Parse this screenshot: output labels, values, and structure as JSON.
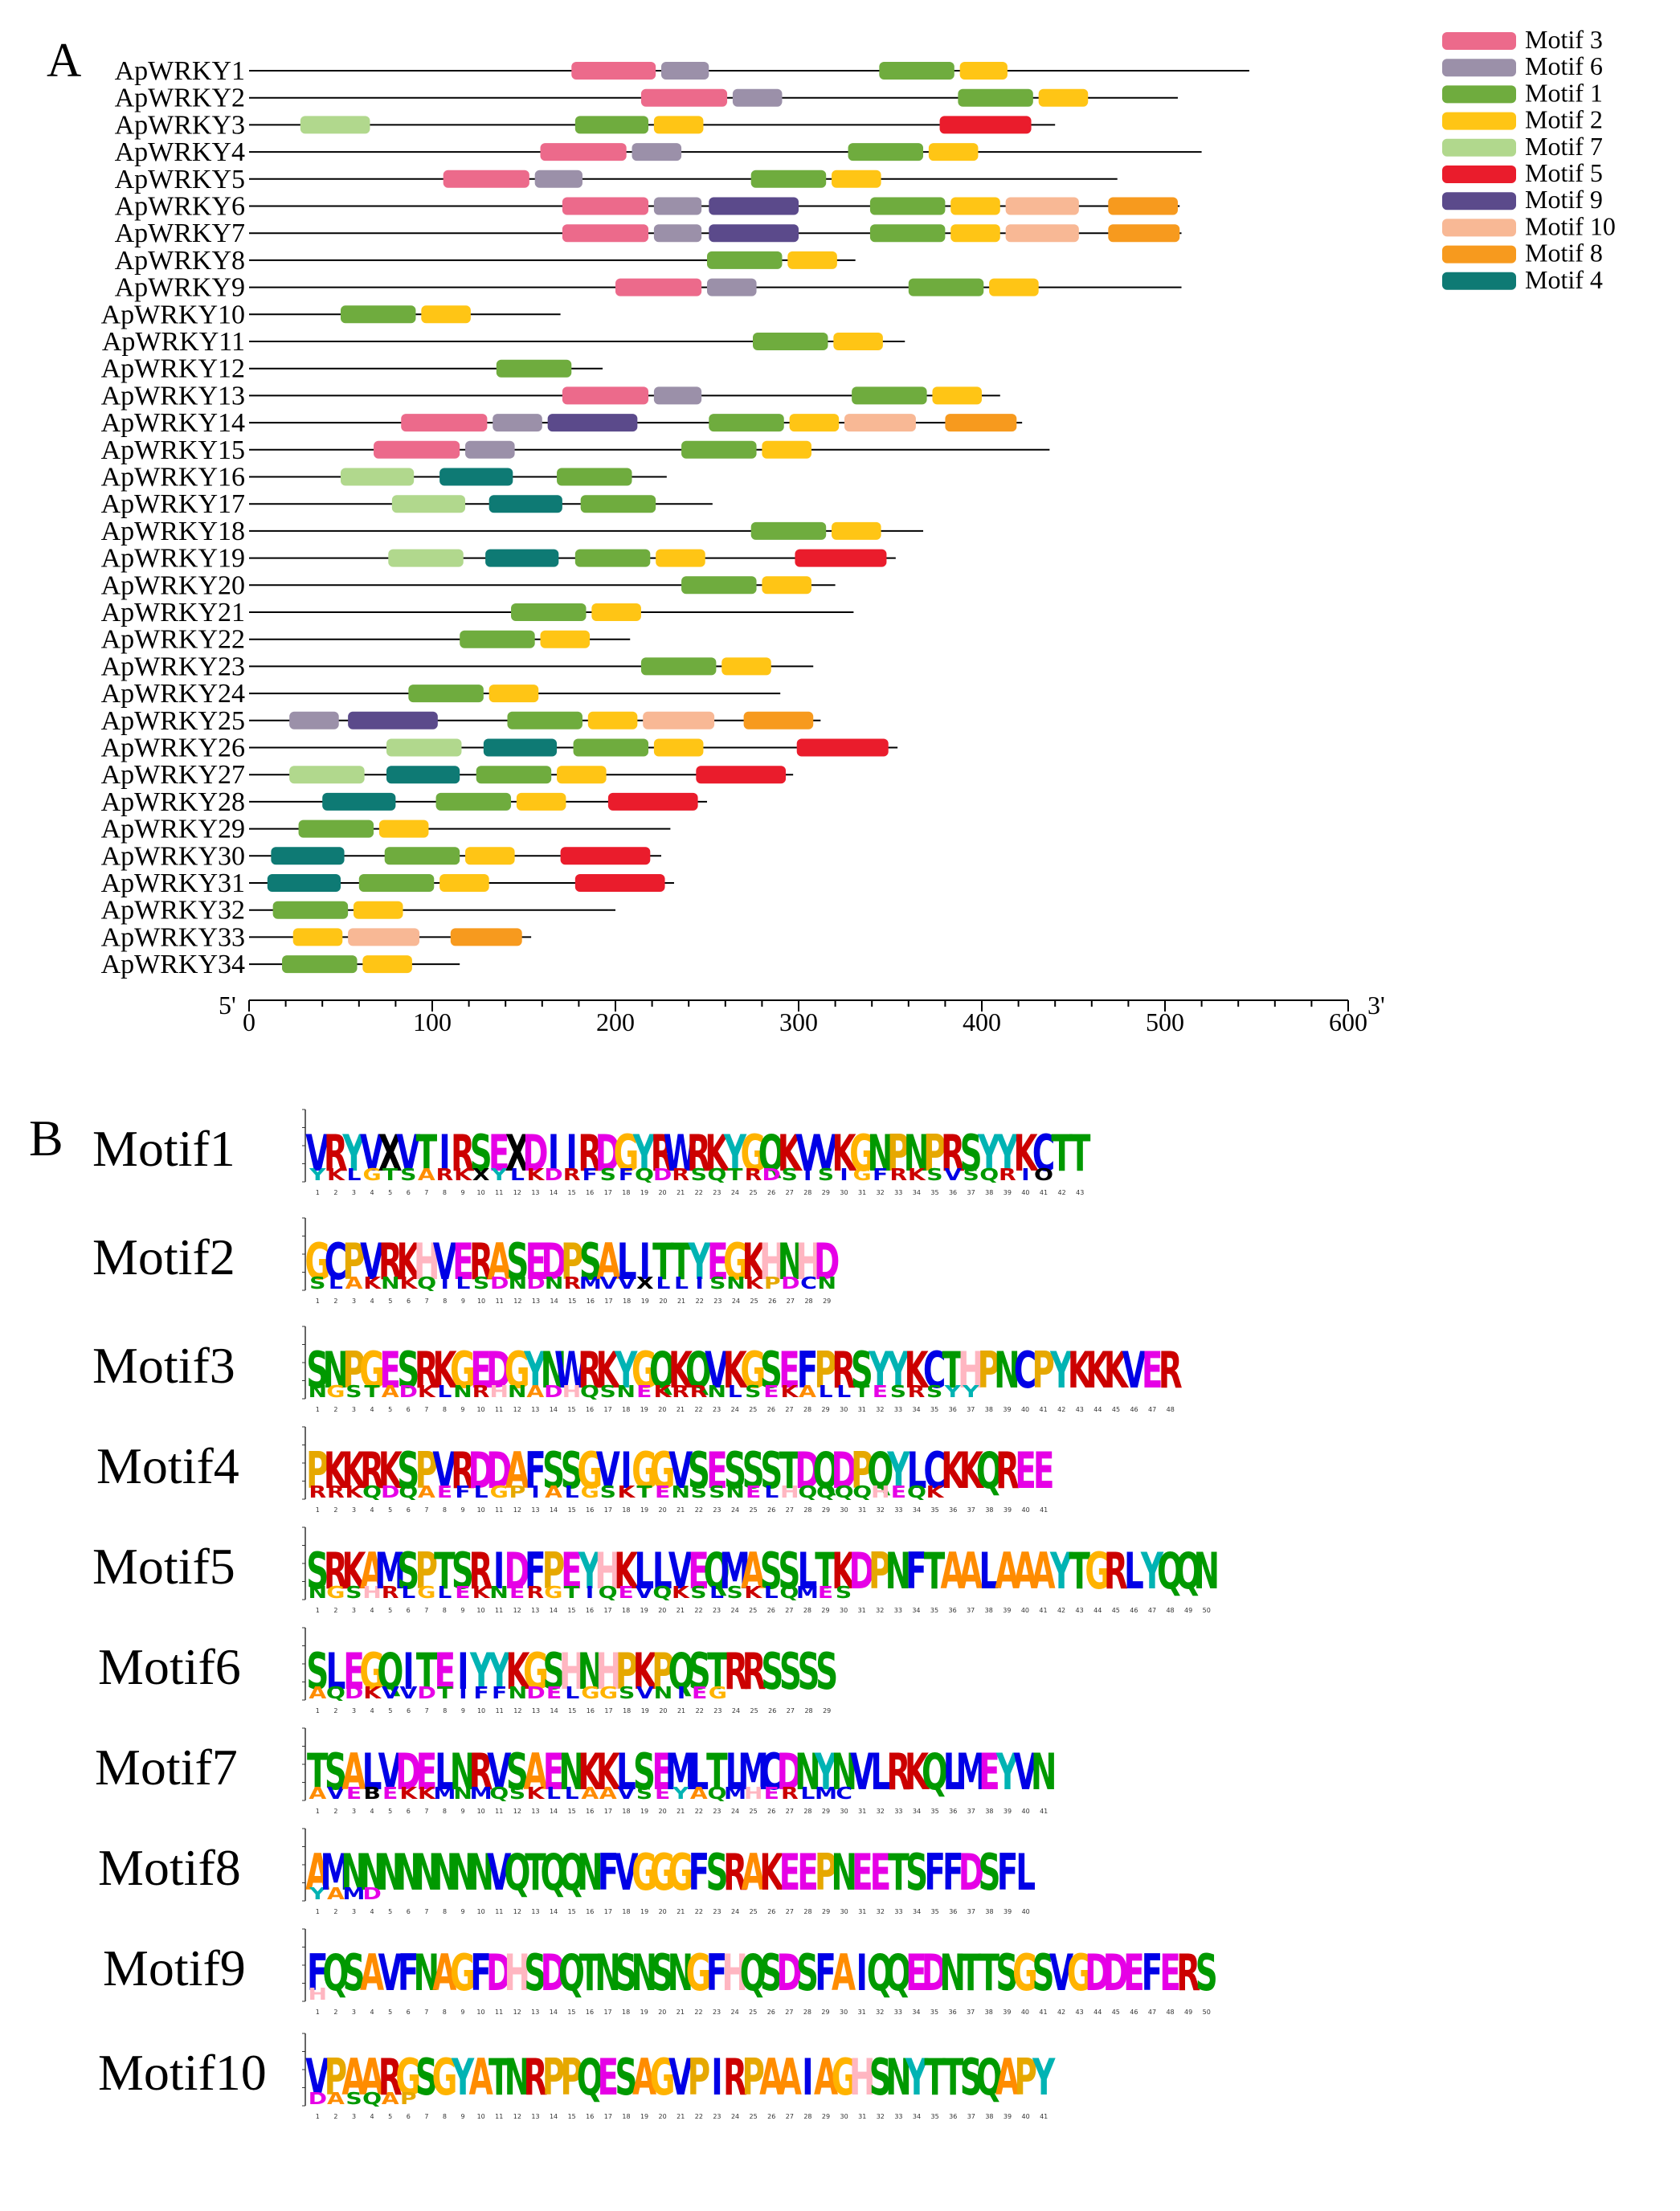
{
  "panelA": {
    "letter": "A",
    "end5": "5'",
    "end3": "3'",
    "axis": {
      "min": 0,
      "max": 600,
      "ticks": [
        "0",
        "100",
        "200",
        "300",
        "400",
        "500",
        "600"
      ]
    },
    "legend": [
      {
        "key": "m3",
        "label": "Motif 3"
      },
      {
        "key": "m6",
        "label": "Motif 6"
      },
      {
        "key": "m1",
        "label": "Motif 1"
      },
      {
        "key": "m2",
        "label": "Motif 2"
      },
      {
        "key": "m7",
        "label": "Motif 7"
      },
      {
        "key": "m5",
        "label": "Motif 5"
      },
      {
        "key": "m9",
        "label": "Motif 9"
      },
      {
        "key": "m10",
        "label": "Motif 10"
      },
      {
        "key": "m8",
        "label": "Motif 8"
      },
      {
        "key": "m4",
        "label": "Motif 4"
      }
    ],
    "colors": {
      "m1": "#6fac3e",
      "m2": "#ffc515",
      "m3": "#ec6a8b",
      "m4": "#0e7a74",
      "m5": "#ea1c2c",
      "m6": "#9b90a9",
      "m7": "#b1d88d",
      "m8": "#f79a1e",
      "m9": "#5b4a8b",
      "m10": "#f8b895"
    },
    "genes": [
      {
        "name": "ApWRKY1",
        "length": 546,
        "motifs": [
          [
            "m3",
            176,
            222
          ],
          [
            "m6",
            225,
            251
          ],
          [
            "m1",
            344,
            385
          ],
          [
            "m2",
            388,
            414
          ]
        ]
      },
      {
        "name": "ApWRKY2",
        "length": 507,
        "motifs": [
          [
            "m3",
            214,
            261
          ],
          [
            "m6",
            264,
            291
          ],
          [
            "m1",
            387,
            428
          ],
          [
            "m2",
            431,
            458
          ]
        ]
      },
      {
        "name": "ApWRKY3",
        "length": 440,
        "motifs": [
          [
            "m7",
            28,
            66
          ],
          [
            "m1",
            178,
            218
          ],
          [
            "m2",
            221,
            248
          ],
          [
            "m5",
            377,
            427
          ]
        ]
      },
      {
        "name": "ApWRKY4",
        "length": 520,
        "motifs": [
          [
            "m3",
            159,
            206
          ],
          [
            "m6",
            209,
            236
          ],
          [
            "m1",
            327,
            368
          ],
          [
            "m2",
            371,
            398
          ]
        ]
      },
      {
        "name": "ApWRKY5",
        "length": 474,
        "motifs": [
          [
            "m3",
            106,
            153
          ],
          [
            "m6",
            156,
            182
          ],
          [
            "m1",
            274,
            315
          ],
          [
            "m2",
            318,
            345
          ]
        ]
      },
      {
        "name": "ApWRKY6",
        "length": 508,
        "motifs": [
          [
            "m3",
            171,
            218
          ],
          [
            "m6",
            221,
            247
          ],
          [
            "m9",
            251,
            300
          ],
          [
            "m1",
            339,
            380
          ],
          [
            "m2",
            383,
            410
          ],
          [
            "m10",
            413,
            453
          ],
          [
            "m8",
            469,
            507
          ]
        ]
      },
      {
        "name": "ApWRKY7",
        "length": 509,
        "motifs": [
          [
            "m3",
            171,
            218
          ],
          [
            "m6",
            221,
            247
          ],
          [
            "m9",
            251,
            300
          ],
          [
            "m1",
            339,
            380
          ],
          [
            "m2",
            383,
            410
          ],
          [
            "m10",
            413,
            453
          ],
          [
            "m8",
            469,
            508
          ]
        ]
      },
      {
        "name": "ApWRKY8",
        "length": 331,
        "motifs": [
          [
            "m1",
            250,
            291
          ],
          [
            "m2",
            294,
            321
          ]
        ]
      },
      {
        "name": "ApWRKY9",
        "length": 509,
        "motifs": [
          [
            "m3",
            200,
            247
          ],
          [
            "m6",
            250,
            277
          ],
          [
            "m1",
            360,
            401
          ],
          [
            "m2",
            404,
            431
          ]
        ]
      },
      {
        "name": "ApWRKY10",
        "length": 170,
        "motifs": [
          [
            "m1",
            50,
            91
          ],
          [
            "m2",
            94,
            121
          ]
        ]
      },
      {
        "name": "ApWRKY11",
        "length": 358,
        "motifs": [
          [
            "m1",
            275,
            316
          ],
          [
            "m2",
            319,
            346
          ]
        ]
      },
      {
        "name": "ApWRKY12",
        "length": 193,
        "motifs": [
          [
            "m1",
            135,
            176
          ]
        ]
      },
      {
        "name": "ApWRKY13",
        "length": 410,
        "motifs": [
          [
            "m3",
            171,
            218
          ],
          [
            "m6",
            221,
            247
          ],
          [
            "m1",
            329,
            370
          ],
          [
            "m2",
            373,
            400
          ]
        ]
      },
      {
        "name": "ApWRKY14",
        "length": 422,
        "motifs": [
          [
            "m3",
            83,
            130
          ],
          [
            "m6",
            133,
            160
          ],
          [
            "m9",
            163,
            212
          ],
          [
            "m1",
            251,
            292
          ],
          [
            "m2",
            295,
            322
          ],
          [
            "m10",
            325,
            364
          ],
          [
            "m8",
            380,
            419
          ]
        ]
      },
      {
        "name": "ApWRKY15",
        "length": 437,
        "motifs": [
          [
            "m3",
            68,
            115
          ],
          [
            "m6",
            118,
            145
          ],
          [
            "m1",
            236,
            277
          ],
          [
            "m2",
            280,
            307
          ]
        ]
      },
      {
        "name": "ApWRKY16",
        "length": 228,
        "motifs": [
          [
            "m7",
            50,
            90
          ],
          [
            "m4",
            104,
            144
          ],
          [
            "m1",
            168,
            209
          ]
        ]
      },
      {
        "name": "ApWRKY17",
        "length": 253,
        "motifs": [
          [
            "m7",
            78,
            118
          ],
          [
            "m4",
            131,
            171
          ],
          [
            "m1",
            181,
            222
          ]
        ]
      },
      {
        "name": "ApWRKY18",
        "length": 368,
        "motifs": [
          [
            "m1",
            274,
            315
          ],
          [
            "m2",
            318,
            345
          ]
        ]
      },
      {
        "name": "ApWRKY19",
        "length": 353,
        "motifs": [
          [
            "m7",
            76,
            117
          ],
          [
            "m4",
            129,
            169
          ],
          [
            "m1",
            178,
            219
          ],
          [
            "m2",
            222,
            249
          ],
          [
            "m5",
            298,
            348
          ]
        ]
      },
      {
        "name": "ApWRKY20",
        "length": 320,
        "motifs": [
          [
            "m1",
            236,
            277
          ],
          [
            "m2",
            280,
            307
          ]
        ]
      },
      {
        "name": "ApWRKY21",
        "length": 330,
        "motifs": [
          [
            "m1",
            143,
            184
          ],
          [
            "m2",
            187,
            214
          ]
        ]
      },
      {
        "name": "ApWRKY22",
        "length": 208,
        "motifs": [
          [
            "m1",
            115,
            156
          ],
          [
            "m2",
            159,
            186
          ]
        ]
      },
      {
        "name": "ApWRKY23",
        "length": 308,
        "motifs": [
          [
            "m1",
            214,
            255
          ],
          [
            "m2",
            258,
            285
          ]
        ]
      },
      {
        "name": "ApWRKY24",
        "length": 290,
        "motifs": [
          [
            "m1",
            87,
            128
          ],
          [
            "m2",
            131,
            158
          ]
        ]
      },
      {
        "name": "ApWRKY25",
        "length": 312,
        "motifs": [
          [
            "m6",
            22,
            49
          ],
          [
            "m9",
            54,
            103
          ],
          [
            "m1",
            141,
            182
          ],
          [
            "m2",
            185,
            212
          ],
          [
            "m10",
            215,
            254
          ],
          [
            "m8",
            270,
            308
          ]
        ]
      },
      {
        "name": "ApWRKY26",
        "length": 354,
        "motifs": [
          [
            "m7",
            75,
            116
          ],
          [
            "m4",
            128,
            168
          ],
          [
            "m1",
            177,
            218
          ],
          [
            "m2",
            221,
            248
          ],
          [
            "m5",
            299,
            349
          ]
        ]
      },
      {
        "name": "ApWRKY27",
        "length": 297,
        "motifs": [
          [
            "m7",
            22,
            63
          ],
          [
            "m4",
            75,
            115
          ],
          [
            "m1",
            124,
            165
          ],
          [
            "m2",
            168,
            195
          ],
          [
            "m5",
            244,
            293
          ]
        ]
      },
      {
        "name": "ApWRKY28",
        "length": 250,
        "motifs": [
          [
            "m4",
            40,
            80
          ],
          [
            "m1",
            102,
            143
          ],
          [
            "m2",
            146,
            173
          ],
          [
            "m5",
            196,
            245
          ]
        ]
      },
      {
        "name": "ApWRKY29",
        "length": 230,
        "motifs": [
          [
            "m1",
            27,
            68
          ],
          [
            "m2",
            71,
            98
          ]
        ]
      },
      {
        "name": "ApWRKY30",
        "length": 225,
        "motifs": [
          [
            "m4",
            12,
            52
          ],
          [
            "m1",
            74,
            115
          ],
          [
            "m2",
            118,
            145
          ],
          [
            "m5",
            170,
            219
          ]
        ]
      },
      {
        "name": "ApWRKY31",
        "length": 232,
        "motifs": [
          [
            "m4",
            10,
            50
          ],
          [
            "m1",
            60,
            101
          ],
          [
            "m2",
            104,
            131
          ],
          [
            "m5",
            178,
            227
          ]
        ]
      },
      {
        "name": "ApWRKY32",
        "length": 200,
        "motifs": [
          [
            "m1",
            13,
            54
          ],
          [
            "m2",
            57,
            84
          ]
        ]
      },
      {
        "name": "ApWRKY33",
        "length": 154,
        "motifs": [
          [
            "m2",
            24,
            51
          ],
          [
            "m10",
            54,
            93
          ],
          [
            "m8",
            110,
            149
          ]
        ]
      },
      {
        "name": "ApWRKY34",
        "length": 115,
        "motifs": [
          [
            "m1",
            18,
            59
          ],
          [
            "m2",
            62,
            89
          ]
        ]
      }
    ]
  },
  "panelB": {
    "letter": "B",
    "motifs": [
      {
        "name": "Motif1",
        "top": "VRYVXVTIRSEXDIIRDGYRWRKYGQKVVKGNPNPRSYYKCTT",
        "bottom": "YKLGTSARKXYLKDRFSFQDRSQTRDSISIGFRKSVSQRIO"
      },
      {
        "name": "Motif2",
        "top": "GCPVRKHVERASEDPSALITTYEGKHNHD",
        "bottom": "SLAKNKQILSDNDNRMVVXLLISNKPDCN"
      },
      {
        "name": "Motif3",
        "top": "SNPGESRKGEDGYNWRKYGQKQVKGSEFPRSYYKCTHPNCPYKKKVER",
        "bottom": "NGSTADKLNRHNADHQSNEKRRNLSEKALLTESRSYY"
      },
      {
        "name": "Motif4",
        "top": "PKKRKSPVRDDAFSSGVIGGVSESSSTDQDPQYLCKKQREE",
        "bottom": "RRKQDQAEFLGPIALGSKTENSSNELHQQQQHEQK"
      },
      {
        "name": "Motif5",
        "top": "SRKAMSPTSRIDFPEYHKLLVEQMASSLTKDPNFTAALAAAYTGRLYQQN",
        "bottom": "NGSHRLGLEKNERGTIQEVQKSLSKLQMES"
      },
      {
        "name": "Motif6",
        "top": "SLEGQITEIYYKGSHNHPKPQSTRRSSSS",
        "bottom": "AQDKVVDTIFFNDELGGSVNIEG"
      },
      {
        "name": "Motif7",
        "top": "TSALVDELNRVSAENKKLSEMLTLMCDNYNVLRKQLMEYVN",
        "bottom": "AVEBEKKMNMQSKLLAAVSEYAQMHERLMC"
      },
      {
        "name": "Motif8",
        "top": "AMNNNNNNNNVQTQQNFVGGGFSRAKEEPNEETSFFDSFL",
        "bottom": "YAMD"
      },
      {
        "name": "Motif9",
        "top": "FQSAVFNAGFDHSDQTNSNSNGFHQSDSFAIQQEDNTTSGSVGDDEFERS",
        "bottom": "H"
      },
      {
        "name": "Motif10",
        "top": "VPAARGSGYATNRPPQESAGVPIRPAAIAGHSNYTTSQAPY",
        "bottom": "DASQAP"
      }
    ]
  }
}
